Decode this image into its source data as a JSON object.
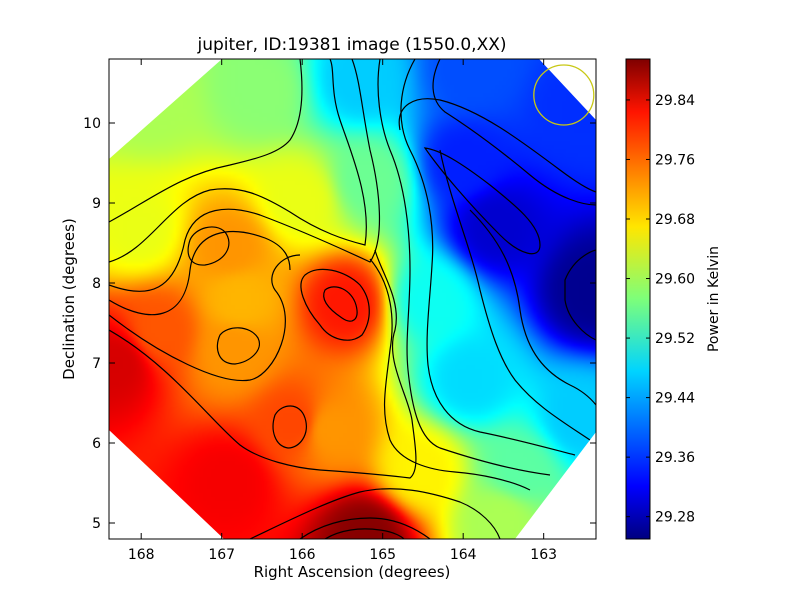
{
  "chart_data": {
    "type": "heatmap",
    "title": "jupiter, ID:19381 image (1550.0,XX)",
    "xlabel": "Right Ascension (degrees)",
    "ylabel": "Declination (degrees)",
    "xlim": [
      168.4,
      162.35
    ],
    "ylim": [
      4.8,
      10.8
    ],
    "x_ticks": [
      168,
      167,
      166,
      165,
      164,
      163
    ],
    "y_ticks": [
      5,
      6,
      7,
      8,
      9,
      10
    ],
    "colorbar": {
      "label": "Power in Kelvin",
      "range": [
        29.25,
        29.895
      ],
      "ticks": [
        "29.28",
        "29.36",
        "29.44",
        "29.52",
        "29.60",
        "29.68",
        "29.76",
        "29.84"
      ],
      "colormap": "jet"
    },
    "grid": false,
    "features": [
      {
        "name": "peak",
        "ra": 165.2,
        "dec": 4.85,
        "value": 29.89
      },
      {
        "name": "peak",
        "ra": 168.3,
        "dec": 7.0,
        "value": 29.84
      },
      {
        "name": "peak",
        "ra": 165.45,
        "dec": 7.75,
        "value": 29.8
      },
      {
        "name": "peak",
        "ra": 166.1,
        "dec": 6.25,
        "value": 29.77
      },
      {
        "name": "peak",
        "ra": 166.9,
        "dec": 8.45,
        "value": 29.72
      },
      {
        "name": "peak",
        "ra": 166.85,
        "dec": 7.15,
        "value": 29.72
      },
      {
        "name": "trough",
        "ra": 162.4,
        "dec": 7.9,
        "value": 29.26
      },
      {
        "name": "trough",
        "ra": 163.6,
        "dec": 8.7,
        "value": 29.3
      },
      {
        "name": "trough",
        "ra": 164.0,
        "dec": 9.5,
        "value": 29.35
      }
    ],
    "beam_marker": {
      "color": "#c8c814",
      "ra": 162.75,
      "dec": 10.35
    }
  }
}
